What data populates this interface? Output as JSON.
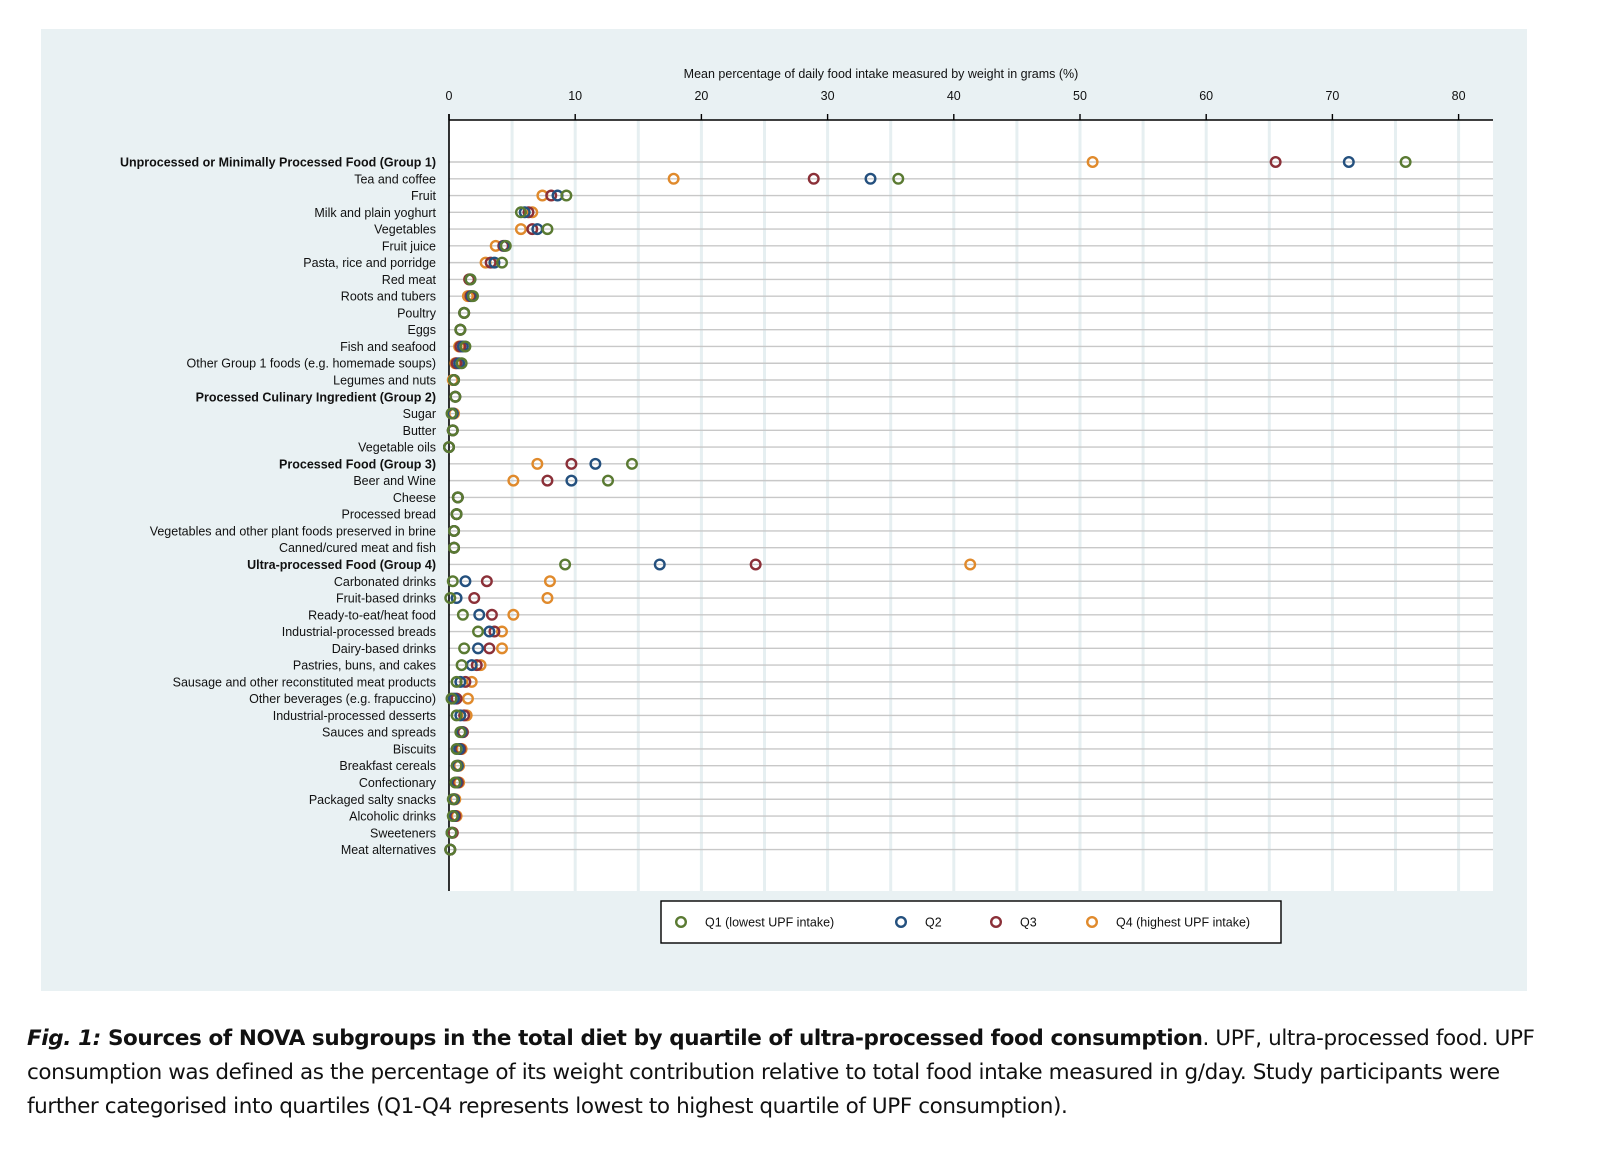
{
  "caption": {
    "label": "Fig. 1:",
    "title": " Sources of NOVA subgroups in the total diet by quartile of ultra-processed food consumption",
    "body": ". UPF, ultra-processed food. UPF consumption was defined as the percentage of its weight contribution relative to total food intake measured in g/day. Study participants were further categorised into quartiles (Q1-Q4 represents lowest to highest quartile of UPF consumption)."
  },
  "chart_data": {
    "type": "scatter",
    "subtype": "dot-plot",
    "title": "",
    "xlabel": "Mean percentage of daily food intake measured by weight in grams (%)",
    "ylabel": "",
    "xaxis_position": "top",
    "xlim": [
      0,
      82
    ],
    "xticks": [
      0,
      10,
      20,
      30,
      40,
      50,
      60,
      70,
      80
    ],
    "grid": true,
    "legend": {
      "placement": "bottom",
      "entries": [
        {
          "key": "q1",
          "label": "Q1 (lowest UPF intake)",
          "color": "#5a7a32"
        },
        {
          "key": "q2",
          "label": "Q2",
          "color": "#24507e"
        },
        {
          "key": "q3",
          "label": "Q3",
          "color": "#8b3038"
        },
        {
          "key": "q4",
          "label": "Q4 (highest UPF intake)",
          "color": "#e08a2c"
        }
      ]
    },
    "categories": [
      {
        "label": "Unprocessed or Minimally Processed Food (Group 1)",
        "bold": true,
        "q1": 75.8,
        "q2": 71.3,
        "q3": 65.5,
        "q4": 51.0
      },
      {
        "label": "Tea and coffee",
        "bold": false,
        "q1": 35.6,
        "q2": 33.4,
        "q3": 28.9,
        "q4": 17.8
      },
      {
        "label": "Fruit",
        "bold": false,
        "q1": 9.3,
        "q2": 8.6,
        "q3": 8.1,
        "q4": 7.4
      },
      {
        "label": "Milk and plain yoghurt",
        "bold": false,
        "q1": 5.7,
        "q2": 6.0,
        "q3": 6.3,
        "q4": 6.6
      },
      {
        "label": "Vegetables",
        "bold": false,
        "q1": 7.8,
        "q2": 7.0,
        "q3": 6.6,
        "q4": 5.7
      },
      {
        "label": "Fruit juice",
        "bold": false,
        "q1": 4.5,
        "q2": 4.4,
        "q3": 4.3,
        "q4": 3.7
      },
      {
        "label": "Pasta, rice and porridge",
        "bold": false,
        "q1": 4.2,
        "q2": 3.6,
        "q3": 3.3,
        "q4": 2.9
      },
      {
        "label": "Red meat",
        "bold": false,
        "q1": 1.7,
        "q2": 1.7,
        "q3": 1.6,
        "q4": 1.6
      },
      {
        "label": "Roots and tubers",
        "bold": false,
        "q1": 1.9,
        "q2": 1.8,
        "q3": 1.7,
        "q4": 1.5
      },
      {
        "label": "Poultry",
        "bold": false,
        "q1": 1.2,
        "q2": 1.2,
        "q3": 1.2,
        "q4": 1.2
      },
      {
        "label": "Eggs",
        "bold": false,
        "q1": 0.9,
        "q2": 0.9,
        "q3": 0.9,
        "q4": 0.9
      },
      {
        "label": "Fish and seafood",
        "bold": false,
        "q1": 1.3,
        "q2": 1.1,
        "q3": 0.9,
        "q4": 0.8
      },
      {
        "label": "Other Group 1 foods (e.g. homemade soups)",
        "bold": false,
        "q1": 1.0,
        "q2": 0.8,
        "q3": 0.6,
        "q4": 0.5
      },
      {
        "label": "Legumes and nuts",
        "bold": false,
        "q1": 0.4,
        "q2": 0.4,
        "q3": 0.4,
        "q4": 0.3
      },
      {
        "label": "Processed Culinary Ingredient (Group 2)",
        "bold": true,
        "q1": 0.5,
        "q2": 0.5,
        "q3": 0.5,
        "q4": 0.5
      },
      {
        "label": "Sugar",
        "bold": false,
        "q1": 0.2,
        "q2": 0.3,
        "q3": 0.3,
        "q4": 0.4
      },
      {
        "label": "Butter",
        "bold": false,
        "q1": 0.3,
        "q2": 0.3,
        "q3": 0.3,
        "q4": 0.3
      },
      {
        "label": "Vegetable oils",
        "bold": false,
        "q1": 0.0,
        "q2": 0.0,
        "q3": 0.0,
        "q4": 0.0
      },
      {
        "label": "Processed Food (Group 3)",
        "bold": true,
        "q1": 14.5,
        "q2": 11.6,
        "q3": 9.7,
        "q4": 7.0
      },
      {
        "label": "Beer and Wine",
        "bold": false,
        "q1": 12.6,
        "q2": 9.7,
        "q3": 7.8,
        "q4": 5.1
      },
      {
        "label": "Cheese",
        "bold": false,
        "q1": 0.7,
        "q2": 0.7,
        "q3": 0.7,
        "q4": 0.7
      },
      {
        "label": "Processed bread",
        "bold": false,
        "q1": 0.6,
        "q2": 0.6,
        "q3": 0.6,
        "q4": 0.6
      },
      {
        "label": "Vegetables and other plant foods preserved in brine",
        "bold": false,
        "q1": 0.4,
        "q2": 0.4,
        "q3": 0.4,
        "q4": 0.4
      },
      {
        "label": "Canned/cured meat and fish",
        "bold": false,
        "q1": 0.4,
        "q2": 0.4,
        "q3": 0.4,
        "q4": 0.4
      },
      {
        "label": "Ultra-processed Food (Group 4)",
        "bold": true,
        "q1": 9.2,
        "q2": 16.7,
        "q3": 24.3,
        "q4": 41.3
      },
      {
        "label": "Carbonated drinks",
        "bold": false,
        "q1": 0.3,
        "q2": 1.3,
        "q3": 3.0,
        "q4": 8.0
      },
      {
        "label": "Fruit-based drinks",
        "bold": false,
        "q1": 0.1,
        "q2": 0.6,
        "q3": 2.0,
        "q4": 7.8
      },
      {
        "label": "Ready-to-eat/heat food",
        "bold": false,
        "q1": 1.1,
        "q2": 2.4,
        "q3": 3.4,
        "q4": 5.1
      },
      {
        "label": "Industrial-processed breads",
        "bold": false,
        "q1": 2.3,
        "q2": 3.2,
        "q3": 3.6,
        "q4": 4.2
      },
      {
        "label": "Dairy-based drinks",
        "bold": false,
        "q1": 1.2,
        "q2": 2.3,
        "q3": 3.2,
        "q4": 4.2
      },
      {
        "label": "Pastries, buns, and cakes",
        "bold": false,
        "q1": 1.0,
        "q2": 1.8,
        "q3": 2.2,
        "q4": 2.5
      },
      {
        "label": "Sausage and other reconstituted meat products",
        "bold": false,
        "q1": 0.6,
        "q2": 0.9,
        "q3": 1.3,
        "q4": 1.8
      },
      {
        "label": "Other beverages (e.g. frapuccino)",
        "bold": false,
        "q1": 0.2,
        "q2": 0.4,
        "q3": 0.6,
        "q4": 1.5
      },
      {
        "label": "Industrial-processed desserts",
        "bold": false,
        "q1": 0.6,
        "q2": 0.9,
        "q3": 1.2,
        "q4": 1.4
      },
      {
        "label": "Sauces and spreads",
        "bold": false,
        "q1": 0.9,
        "q2": 1.0,
        "q3": 1.1,
        "q4": 1.1
      },
      {
        "label": "Biscuits",
        "bold": false,
        "q1": 0.6,
        "q2": 0.8,
        "q3": 0.9,
        "q4": 1.0
      },
      {
        "label": "Breakfast cereals",
        "bold": false,
        "q1": 0.6,
        "q2": 0.7,
        "q3": 0.7,
        "q4": 0.8
      },
      {
        "label": "Confectionary",
        "bold": false,
        "q1": 0.5,
        "q2": 0.6,
        "q3": 0.7,
        "q4": 0.8
      },
      {
        "label": "Packaged salty snacks",
        "bold": false,
        "q1": 0.3,
        "q2": 0.4,
        "q3": 0.4,
        "q4": 0.5
      },
      {
        "label": "Alcoholic drinks",
        "bold": false,
        "q1": 0.3,
        "q2": 0.4,
        "q3": 0.5,
        "q4": 0.6
      },
      {
        "label": "Sweeteners",
        "bold": false,
        "q1": 0.2,
        "q2": 0.2,
        "q3": 0.3,
        "q4": 0.3
      },
      {
        "label": "Meat alternatives",
        "bold": false,
        "q1": 0.1,
        "q2": 0.1,
        "q3": 0.1,
        "q4": 0.1
      }
    ]
  }
}
